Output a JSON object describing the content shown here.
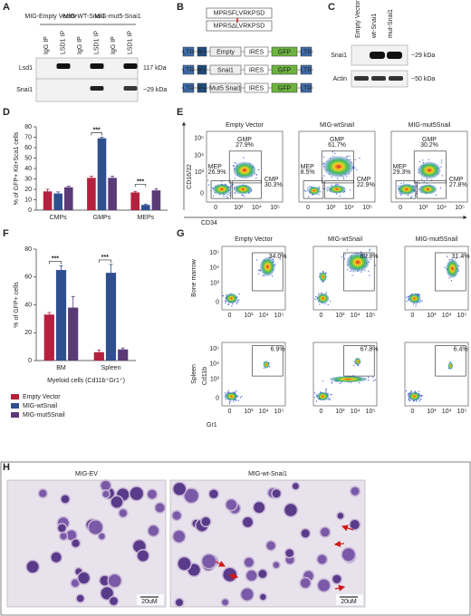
{
  "panel_labels": [
    "A",
    "B",
    "C",
    "D",
    "E",
    "F",
    "G",
    "H"
  ],
  "blot_a": {
    "groups": [
      "MIG-Empty Vector",
      "MIG-WT-Snai1",
      "MIG-mut5-Snai1"
    ],
    "lanes": [
      "IgG IP",
      "LSD1 IP",
      "IgG IP",
      "LSD1 IP",
      "IgG IP",
      "LSD1 IP"
    ],
    "rows": [
      "Lsd1",
      "Snai1"
    ],
    "markers": [
      "117 kDa",
      "~29 kDa"
    ]
  },
  "constructs_b": {
    "sequences": [
      "MPRSFLVRKPSD",
      "MPRS∆LVRKPSD"
    ],
    "rows": [
      [
        "LTR",
        "Ψ+",
        "Empty",
        "IRES",
        "GFP",
        "LTR"
      ],
      [
        "LTR",
        "Ψ+",
        "Snai1",
        "IRES",
        "GFP",
        "LTR"
      ],
      [
        "LTR",
        "Ψ+",
        "Mut5 Snai1",
        "IRES",
        "GFP",
        "LTR"
      ]
    ]
  },
  "blot_c": {
    "lanes": [
      "Empty Vector",
      "wt-Snai1",
      "mut-Snai1"
    ],
    "rows": [
      "Snai1",
      "Actin"
    ],
    "markers": [
      "~29 kDa",
      "~50 kDa"
    ]
  },
  "chart_data": [
    {
      "type": "bar",
      "y_label": "% of GFP+ Kit+Sca1 cells",
      "categories": [
        "CMPs",
        "GMPs",
        "MEPs"
      ],
      "series": [
        {
          "color": "#b5203f",
          "values": [
            18,
            31,
            17
          ],
          "errors": [
            2,
            1.5,
            1
          ]
        },
        {
          "color": "#2f4f8f",
          "values": [
            16,
            69,
            5
          ],
          "errors": [
            1.5,
            1,
            0.8
          ]
        },
        {
          "color": "#5b3a78",
          "values": [
            22,
            31,
            19
          ],
          "errors": [
            1,
            1.5,
            1.5
          ]
        }
      ],
      "ylim": [
        0,
        80
      ],
      "yticks": [
        0,
        10,
        20,
        30,
        40,
        50,
        60,
        70,
        80
      ],
      "annotations": [
        "***",
        "***"
      ]
    },
    {
      "type": "bar",
      "y_label": "% of GFP+ cells",
      "x_label": "Myeloid cells (Cd11b⁺Gr1⁺)",
      "categories": [
        "BM",
        "Spleen"
      ],
      "series": [
        {
          "name": "Empty Vector",
          "color": "#b5203f",
          "values": [
            33,
            6
          ],
          "errors": [
            1.5,
            1.5
          ]
        },
        {
          "name": "MIG-wtSnail",
          "color": "#2f4f8f",
          "values": [
            65,
            63
          ],
          "errors": [
            3,
            6
          ]
        },
        {
          "name": "MIG-mut5Snail",
          "color": "#5b3a78",
          "values": [
            38,
            8
          ],
          "errors": [
            8,
            1
          ]
        }
      ],
      "ylim": [
        0,
        80
      ],
      "yticks": [
        0,
        20,
        40,
        60,
        80
      ],
      "annotations": [
        "***",
        "***"
      ]
    }
  ],
  "flow_e": {
    "titles": [
      "Empty Vector",
      "MIG-wtSnail",
      "MIG-mut5Snail"
    ],
    "y_label": "CD16/32",
    "x_label": "CD34",
    "ticks": [
      "0",
      "10³",
      "10⁴",
      "10⁵"
    ],
    "plots": [
      {
        "gates": [
          {
            "name": "GMP",
            "value": "27.9%"
          },
          {
            "name": "MEP",
            "value": "26.9%"
          },
          {
            "name": "CMP",
            "value": "30.3%"
          }
        ]
      },
      {
        "gates": [
          {
            "name": "GMP",
            "value": "61.7%"
          },
          {
            "name": "MEP",
            "value": "8.5%"
          },
          {
            "name": "CMP",
            "value": "22.9%"
          }
        ]
      },
      {
        "gates": [
          {
            "name": "GMP",
            "value": "30.2%"
          },
          {
            "name": "MEP",
            "value": "29.3%"
          },
          {
            "name": "CMP",
            "value": "27.8%"
          }
        ]
      }
    ]
  },
  "flow_g": {
    "titles": [
      "Empty Vector",
      "MIG-wtSnail",
      "MIG-mut5Snail"
    ],
    "rows": [
      "Bone marrow",
      "Spleen"
    ],
    "y_label": "Cd11b",
    "x_label": "Gr1",
    "ticks": [
      "0",
      "10³",
      "10⁴",
      "10⁵"
    ],
    "gates": [
      [
        "34.0%",
        "60.8%",
        "31.4%"
      ],
      [
        "6.9%",
        "67.8%",
        "6.4%"
      ]
    ]
  },
  "micro_h": {
    "titles": [
      "MIG-EV",
      "MIG-wt-Snai1"
    ],
    "scale_bar": "20uM"
  }
}
